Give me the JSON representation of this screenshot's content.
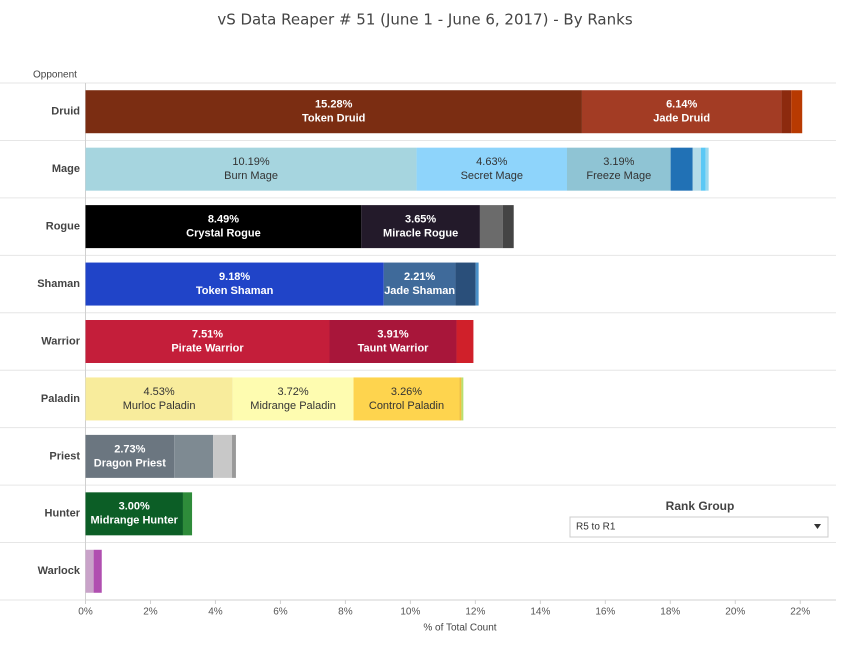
{
  "chart_data": {
    "type": "stacked-bar-horizontal",
    "title": "vS Data Reaper # 51 (June 1 - June 6, 2017) - By Ranks",
    "y_axis_label": "Opponent",
    "x_axis_label": "% of Total Count",
    "categories": [
      "Druid",
      "Mage",
      "Rogue",
      "Shaman",
      "Warrior",
      "Paladin",
      "Priest",
      "Hunter",
      "Warlock"
    ],
    "xlim": [
      0,
      23.1
    ],
    "xticks": [
      {
        "value": 0,
        "label": "0%"
      },
      {
        "value": 2,
        "label": "2%"
      },
      {
        "value": 4,
        "label": "4%"
      },
      {
        "value": 6,
        "label": "6%"
      },
      {
        "value": 8,
        "label": "8%"
      },
      {
        "value": 10,
        "label": "10%"
      },
      {
        "value": 12,
        "label": "12%"
      },
      {
        "value": 14,
        "label": "14%"
      },
      {
        "value": 16,
        "label": "16%"
      },
      {
        "value": 18,
        "label": "18%"
      },
      {
        "value": 20,
        "label": "20%"
      },
      {
        "value": 22,
        "label": "22%"
      }
    ],
    "bars": [
      {
        "segments": [
          {
            "name": "Token Druid",
            "value": 15.28,
            "value_label": "15.28%",
            "color": "#7b2d12"
          },
          {
            "name": "Jade Druid",
            "value": 6.14,
            "value_label": "6.14%",
            "color": "#a33c24"
          },
          {
            "value": 0.3,
            "color": "#8c2a0e"
          },
          {
            "value": 0.34,
            "color": "#b83a02"
          }
        ]
      },
      {
        "segments": [
          {
            "name": "Burn Mage",
            "value": 10.19,
            "value_label": "10.19%",
            "color": "#a6d5df"
          },
          {
            "name": "Secret Mage",
            "value": 4.63,
            "value_label": "4.63%",
            "color": "#8ed4fb"
          },
          {
            "name": "Freeze Mage",
            "value": 3.19,
            "value_label": "3.19%",
            "color": "#8fc4d4"
          },
          {
            "value": 0.68,
            "color": "#2171b5"
          },
          {
            "value": 0.25,
            "color": "#b4dbe8"
          },
          {
            "value": 0.15,
            "color": "#5bc8f5"
          },
          {
            "value": 0.09,
            "color": "#9ad8ee"
          }
        ]
      },
      {
        "segments": [
          {
            "name": "Crystal Rogue",
            "value": 8.49,
            "value_label": "8.49%",
            "color": "#000000"
          },
          {
            "name": "Miracle Rogue",
            "value": 3.65,
            "value_label": "3.65%",
            "color": "#231a2a"
          },
          {
            "value": 0.7,
            "color": "#6b6b6b"
          },
          {
            "value": 0.34,
            "color": "#444444"
          }
        ]
      },
      {
        "segments": [
          {
            "name": "Token Shaman",
            "value": 9.18,
            "value_label": "9.18%",
            "color": "#2044c8"
          },
          {
            "name": "Jade Shaman",
            "value": 2.21,
            "value_label": "2.21%",
            "color": "#3f6a9a"
          },
          {
            "value": 0.62,
            "color": "#2a4f7a"
          },
          {
            "value": 0.09,
            "color": "#4a90c8"
          }
        ]
      },
      {
        "segments": [
          {
            "name": "Pirate Warrior",
            "value": 7.51,
            "value_label": "7.51%",
            "color": "#c41e3a"
          },
          {
            "name": "Taunt Warrior",
            "value": 3.91,
            "value_label": "3.91%",
            "color": "#a8163a"
          },
          {
            "value": 0.52,
            "color": "#d0202a"
          }
        ]
      },
      {
        "segments": [
          {
            "name": "Murloc Paladin",
            "value": 4.53,
            "value_label": "4.53%",
            "color": "#f8ec9c"
          },
          {
            "name": "Midrange Paladin",
            "value": 3.72,
            "value_label": "3.72%",
            "color": "#fefcb0"
          },
          {
            "name": "Control Paladin",
            "value": 3.26,
            "value_label": "3.26%",
            "color": "#fed44e"
          },
          {
            "value": 0.06,
            "color": "#f0c040"
          },
          {
            "value": 0.06,
            "color": "#b8e070"
          }
        ]
      },
      {
        "segments": [
          {
            "name": "Dragon Priest",
            "value": 2.73,
            "value_label": "2.73%",
            "color": "#6b7680"
          },
          {
            "value": 1.2,
            "color": "#7e8a92"
          },
          {
            "value": 0.58,
            "color": "#c8c8c8"
          },
          {
            "value": 0.12,
            "color": "#999999"
          }
        ]
      },
      {
        "segments": [
          {
            "name": "Midrange Hunter",
            "value": 3.0,
            "value_label": "3.00%",
            "color": "#0c5e26"
          },
          {
            "value": 0.28,
            "color": "#2e8b3a"
          }
        ]
      },
      {
        "segments": [
          {
            "value": 0.25,
            "color": "#c9a3c9"
          },
          {
            "value": 0.25,
            "color": "#b04fb0"
          }
        ]
      }
    ],
    "filter": {
      "title": "Rank Group",
      "selected": "R5 to R1"
    }
  }
}
